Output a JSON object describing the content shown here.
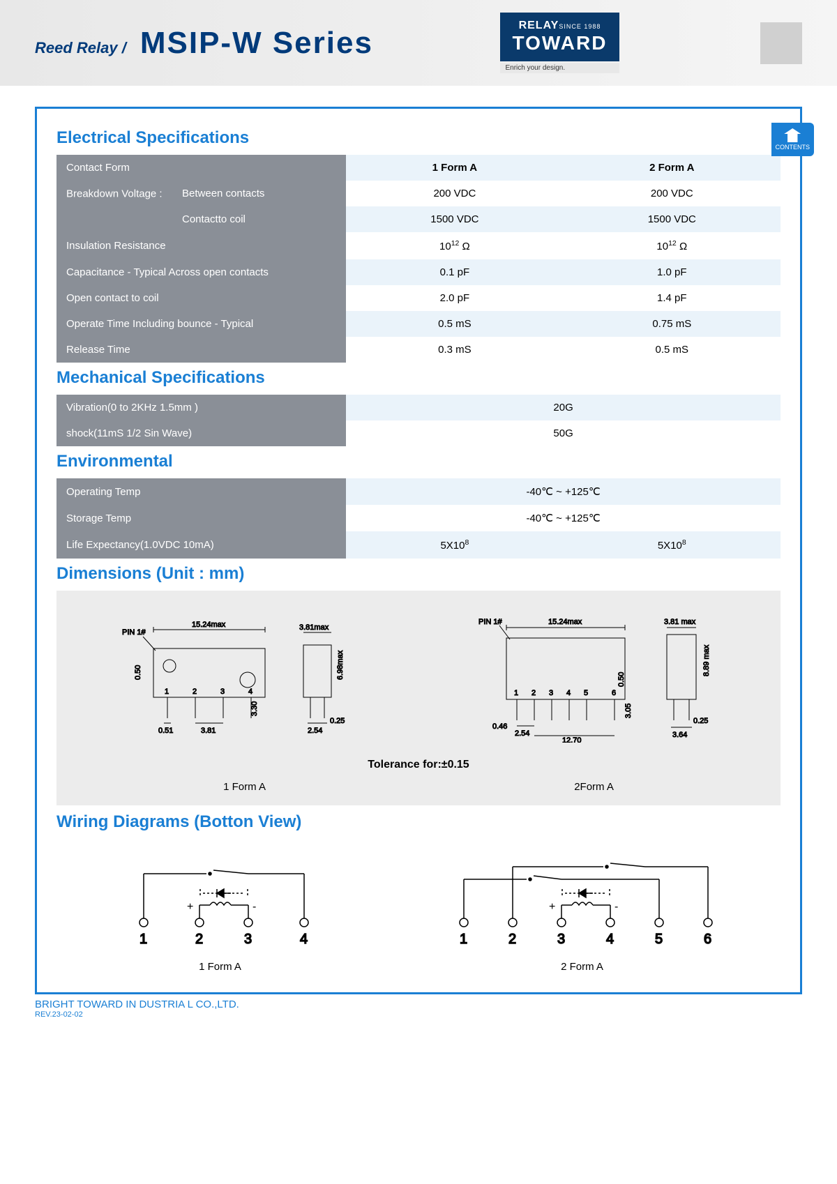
{
  "header": {
    "subtitle": "Reed Relay  /",
    "title": "MSIP-W Series",
    "logo_top": "RELAY",
    "logo_since": "SINCE 1988",
    "logo_main": "TOWARD",
    "logo_tag": "Enrich your design."
  },
  "tab": {
    "text": "CONTENTS"
  },
  "sections": {
    "elec": "Electrical Specifications",
    "mech": "Mechanical Specifications",
    "env": "Environmental",
    "dim": "Dimensions (Unit : mm)",
    "wire": "Wiring Diagrams (Botton View)"
  },
  "elec_table": {
    "header": [
      "Contact Form",
      "1 Form A",
      "2 Form A"
    ],
    "rows": [
      {
        "label": "Breakdown Voltage :",
        "sub": "Between contacts",
        "c1": "200 VDC",
        "c2": "200 VDC",
        "alt": false,
        "issub": true,
        "firstsub": true
      },
      {
        "label": "",
        "sub": "Contactto coil",
        "c1": "1500 VDC",
        "c2": "1500 VDC",
        "alt": true,
        "issub": true,
        "firstsub": false
      },
      {
        "label": "Insulation Resistance",
        "c1": "10<sup>12</sup> Ω",
        "c2": "10<sup>12</sup> Ω",
        "alt": false
      },
      {
        "label": "Capacitance - Typical Across open contacts",
        "c1": "0.1 pF",
        "c2": "1.0 pF",
        "alt": true
      },
      {
        "label": "Open contact to coil",
        "c1": "2.0 pF",
        "c2": "1.4 pF",
        "alt": false
      },
      {
        "label": "Operate Time Including bounce - Typical",
        "c1": "0.5 mS",
        "c2": "0.75 mS",
        "alt": true
      },
      {
        "label": "Release Time",
        "c1": "0.3 mS",
        "c2": "0.5 mS",
        "alt": false
      }
    ]
  },
  "mech_table": {
    "rows": [
      {
        "label": "Vibration(0 to 2KHz 1.5mm )",
        "val": "20G",
        "alt": true
      },
      {
        "label": "shock(11mS 1/2 Sin Wave)",
        "val": "50G",
        "alt": false
      }
    ]
  },
  "env_table": {
    "rows": [
      {
        "label": "Operating Temp",
        "c1": "-40℃ ~ +125℃",
        "span": true,
        "alt": true
      },
      {
        "label": "Storage Temp",
        "c1": "-40℃ ~ +125℃",
        "span": true,
        "alt": false
      },
      {
        "label": "Life Expectancy(1.0VDC 10mA)",
        "c1": "5X10<sup>8</sup>",
        "c2": "5X10<sup>8</sup>",
        "span": false,
        "alt": true
      }
    ]
  },
  "dimensions": {
    "tolerance": "Tolerance for:±0.15",
    "labels": [
      "1 Form A",
      "2Form A"
    ],
    "d1": {
      "w_max": "15.24max",
      "h_max": "6.98max",
      "side_w": "3.81max",
      "pin": "PIN 1#",
      "pinw": "0.51",
      "pitch": "3.81",
      "lead": "3.30",
      "side_pitch": "2.54",
      "side_pin": "0.25",
      "top_off": "0.50"
    },
    "d2": {
      "w_max": "15.24max",
      "h_max": "8.89 max",
      "side_w": "3.81 max",
      "pin": "PIN 1#",
      "pinw": "0.46",
      "pitch": "2.54",
      "span": "12.70",
      "lead": "3.05",
      "side_pitch": "3.64",
      "side_pin": "0.25",
      "top_off": "0.50"
    }
  },
  "wiring": {
    "labels": [
      "1 Form A",
      "2 Form A"
    ]
  },
  "footer": {
    "company": "BRIGHT TOWARD IN DUSTRIA L CO.,LTD.",
    "rev": "REV.23-02-02"
  },
  "colors": {
    "blue": "#1a7fd4",
    "gray": "#8a8f97",
    "lightblue": "#eaf3fa",
    "diag": "#ececec",
    "navy": "#0a3a6b"
  }
}
